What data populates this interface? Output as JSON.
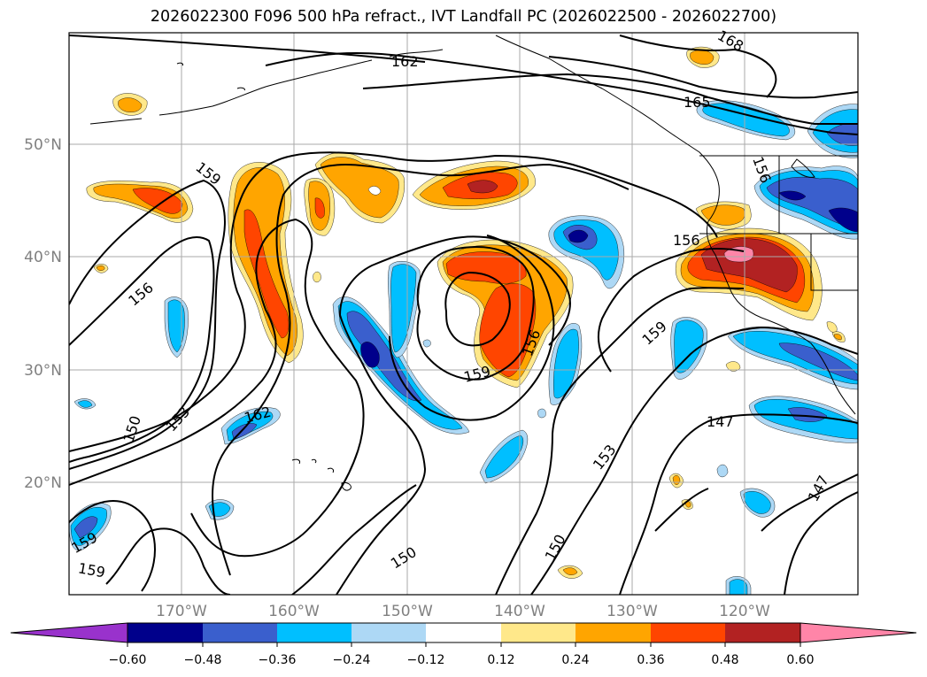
{
  "title": "2026022300 F096 500 hPa refract., IVT Landfall PC (2026022500 - 2026022700)",
  "lat_labels": [
    "50°N",
    "40°N",
    "30°N",
    "20°N"
  ],
  "lon_labels": [
    "170°W",
    "160°W",
    "150°W",
    "140°W",
    "130°W",
    "120°W"
  ],
  "contour_labels": [
    "162",
    "168",
    "165",
    "159",
    "156",
    "156",
    "156",
    "159",
    "156",
    "159",
    "162",
    "153",
    "150",
    "159",
    "159",
    "150",
    "153",
    "150",
    "147",
    "147"
  ],
  "colorbar": {
    "ticks": [
      "−0.60",
      "−0.48",
      "−0.36",
      "−0.24",
      "−0.12",
      "0.12",
      "0.24",
      "0.36",
      "0.48",
      "0.60"
    ],
    "colors": [
      "#9932cc",
      "#00008b",
      "#3a5fcd",
      "#00bfff",
      "#add8f5",
      "#ffffff",
      "#ffe88a",
      "#ffa500",
      "#ff4500",
      "#b22222",
      "#ff85a8"
    ]
  },
  "fill_colors": {
    "light_yellow": "#ffe88a",
    "orange": "#ffa500",
    "red_orange": "#ff4500",
    "dark_red": "#b22222",
    "pink": "#ff85a8",
    "light_blue": "#add8f5",
    "deep_sky_blue": "#00bfff",
    "royal_blue": "#3a5fcd",
    "navy": "#00008b"
  }
}
